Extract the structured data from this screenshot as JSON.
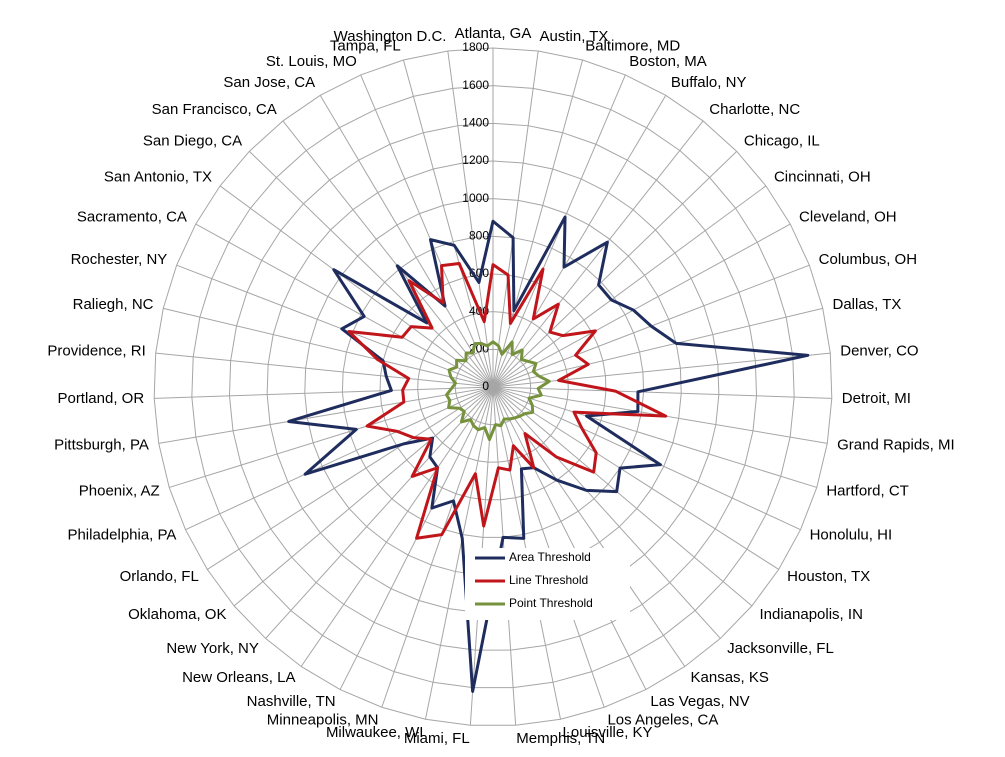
{
  "chart_data": {
    "type": "radar",
    "categories": [
      "Atlanta, GA",
      "Austin, TX",
      "Baltimore, MD",
      "Boston, MA",
      "Buffalo, NY",
      "Charlotte, NC",
      "Chicago, IL",
      "Cincinnati, OH",
      "Cleveland, OH",
      "Columbus, OH",
      "Dallas, TX",
      "Denver, CO",
      "Detroit, MI",
      "Grand Rapids, MI",
      "Hartford, CT",
      "Honolulu, HI",
      "Houston, TX",
      "Indianapolis, IN",
      "Jacksonville, FL",
      "Kansas, KS",
      "Las Vegas, NV",
      "Los Angeles, CA",
      "Louisville, KY",
      "Memphis, TN",
      "Miami, FL",
      "Milwaukee, WI",
      "Minneapolis, MN",
      "Nashville, TN",
      "New Orleans, LA",
      "New York, NY",
      "Oklahoma, OK",
      "Orlando, FL",
      "Philadelphia, PA",
      "Phoenix, AZ",
      "Pittsburgh, PA",
      "Portland, OR",
      "Providence, RI",
      "Raliegh, NC",
      "Rochester, NY",
      "Sacramento, CA",
      "San Antonio, TX",
      "San Diego, CA",
      "San Francisco, CA",
      "San Jose, CA",
      "St. Louis, MO",
      "Tampa, FL",
      "Washington D.C."
    ],
    "series": [
      {
        "name": "Area Threshold",
        "color": "#1f2d5e",
        "values": [
          880,
          800,
          420,
          980,
          740,
          980,
          780,
          780,
          850,
          900,
          1000,
          1680,
          770,
          780,
          520,
          980,
          800,
          860,
          740,
          600,
          480,
          460,
          820,
          800,
          1620,
          820,
          640,
          720,
          520,
          500,
          420,
          560,
          1100,
          760,
          1100,
          540,
          570,
          600,
          860,
          780,
          1050,
          490,
          820,
          500,
          850,
          780,
          560
        ]
      },
      {
        "name": "Line Threshold",
        "color": "#c0161b",
        "values": [
          650,
          600,
          350,
          680,
          420,
          560,
          420,
          460,
          620,
          470,
          520,
          350,
          650,
          930,
          450,
          520,
          650,
          700,
          500,
          300,
          480,
          330,
          450,
          430,
          740,
          470,
          830,
          900,
          520,
          640,
          430,
          500,
          560,
          700,
          480,
          480,
          450,
          630,
          820,
          550,
          540,
          450,
          720,
          520,
          700,
          680,
          350
        ]
      },
      {
        "name": "Point Threshold",
        "color": "#76923c",
        "values": [
          240,
          220,
          180,
          260,
          200,
          250,
          210,
          230,
          260,
          230,
          250,
          300,
          240,
          260,
          200,
          230,
          250,
          220,
          210,
          200,
          190,
          180,
          210,
          200,
          280,
          220,
          240,
          230,
          210,
          250,
          200,
          210,
          260,
          240,
          250,
          220,
          200,
          230,
          250,
          220,
          240,
          200,
          230,
          210,
          250,
          240,
          220
        ]
      }
    ],
    "ylim": [
      0,
      1800
    ],
    "yticks": [
      0,
      200,
      400,
      600,
      800,
      1000,
      1200,
      1400,
      1600,
      1800
    ],
    "legend": "bottom"
  }
}
